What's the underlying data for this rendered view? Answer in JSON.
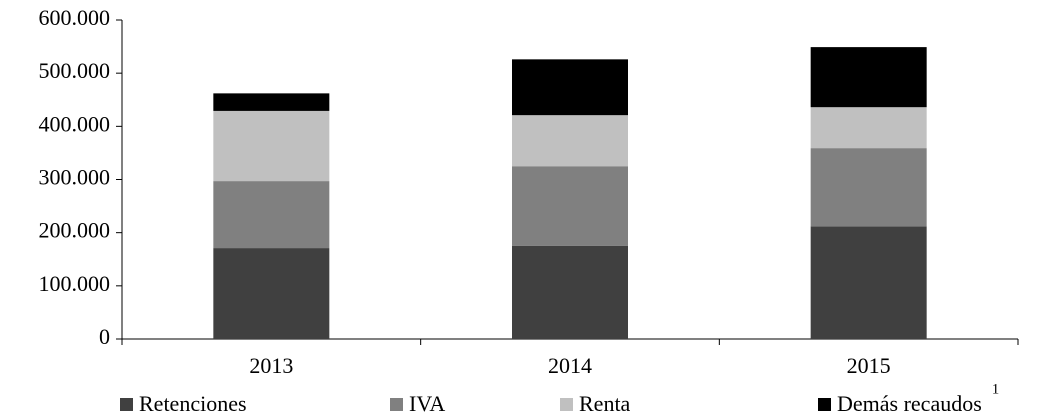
{
  "chart_data": {
    "type": "stacked_bar",
    "categories": [
      "2013",
      "2014",
      "2015"
    ],
    "series": [
      {
        "name": "Retenciones",
        "color": "#404040",
        "values": [
          171000,
          175000,
          212000
        ]
      },
      {
        "name": "IVA",
        "color": "#808080",
        "values": [
          126000,
          150000,
          147000
        ]
      },
      {
        "name": "Renta",
        "color": "#c0c0c0",
        "values": [
          132000,
          96000,
          77000
        ]
      },
      {
        "name": "Demás recaudos",
        "color": "#000000",
        "values": [
          33000,
          105000,
          113000
        ]
      }
    ],
    "legend_footnote_mark": "1",
    "ylim": [
      0,
      600000
    ],
    "yticks": [
      0,
      {
        "value": 100000,
        "label": "100.000"
      },
      {
        "value": 200000,
        "label": "200.000"
      },
      {
        "value": 300000,
        "label": "300.000"
      },
      {
        "value": 400000,
        "label": "400.000"
      },
      {
        "value": 500000,
        "label": "500.000"
      },
      {
        "value": 600000,
        "label": "600.000"
      }
    ],
    "legend": "bottom"
  }
}
